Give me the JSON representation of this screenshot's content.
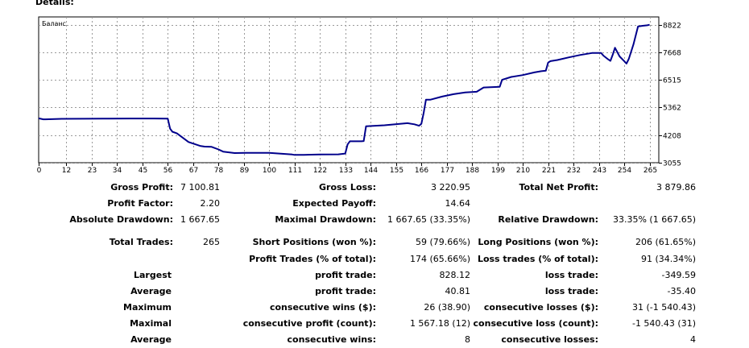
{
  "report": {
    "heading": "Details:",
    "chart_title": "Баланс"
  },
  "chart_data": {
    "type": "line",
    "title": "Баланс",
    "series": [
      {
        "name": "Баланс",
        "color": "#00008b",
        "x": [
          0,
          1,
          2,
          3,
          10,
          20,
          30,
          40,
          50,
          55,
          56,
          57,
          58,
          60,
          65,
          70,
          72,
          75,
          78,
          80,
          85,
          90,
          100,
          110,
          111,
          115,
          122,
          130,
          133,
          134,
          135,
          140,
          141,
          142,
          150,
          160,
          163,
          165,
          166,
          167,
          168,
          170,
          175,
          180,
          185,
          190,
          193,
          200,
          201,
          205,
          210,
          215,
          218,
          220,
          221,
          222,
          225,
          230,
          235,
          240,
          244,
          245,
          247,
          248,
          249,
          250,
          252,
          254,
          255,
          256,
          258,
          260,
          262,
          264,
          265
        ],
        "y": [
          4910,
          4890,
          4870,
          4870,
          4890,
          4895,
          4900,
          4905,
          4905,
          4900,
          4900,
          4480,
          4350,
          4280,
          3920,
          3760,
          3730,
          3720,
          3610,
          3520,
          3460,
          3465,
          3470,
          3400,
          3380,
          3385,
          3400,
          3405,
          3440,
          3820,
          3950,
          3950,
          3960,
          4580,
          4620,
          4710,
          4660,
          4600,
          4680,
          5130,
          5690,
          5690,
          5820,
          5920,
          5990,
          6020,
          6200,
          6230,
          6520,
          6640,
          6720,
          6830,
          6880,
          6900,
          7240,
          7300,
          7350,
          7460,
          7560,
          7640,
          7640,
          7530,
          7380,
          7310,
          7570,
          7860,
          7500,
          7300,
          7200,
          7400,
          8000,
          8750,
          8780,
          8800,
          8822
        ]
      }
    ],
    "xlim": [
      0,
      269
    ],
    "ylim": [
      3055,
      9150
    ],
    "x_ticks": [
      0,
      12,
      23,
      34,
      45,
      56,
      67,
      78,
      89,
      100,
      111,
      122,
      133,
      144,
      155,
      166,
      177,
      188,
      199,
      210,
      221,
      232,
      243,
      254,
      265
    ],
    "y_ticks": [
      {
        "value": 3055,
        "label": "3055"
      },
      {
        "value": 4208,
        "label": "4208"
      },
      {
        "value": 5362,
        "label": "5362"
      },
      {
        "value": 6515,
        "label": "6515"
      },
      {
        "value": 7668,
        "label": "7668"
      },
      {
        "value": 8822,
        "label": "8822"
      }
    ],
    "grid": true
  },
  "stats": {
    "gross_profit": {
      "label": "Gross Profit:",
      "value": "7 100.81"
    },
    "gross_loss": {
      "label": "Gross Loss:",
      "value": "3 220.95"
    },
    "total_net_profit": {
      "label": "Total Net Profit:",
      "value": "3 879.86"
    },
    "profit_factor": {
      "label": "Profit Factor:",
      "value": "2.20"
    },
    "expected_payoff": {
      "label": "Expected Payoff:",
      "value": "14.64"
    },
    "absolute_drawdown": {
      "label": "Absolute Drawdown:",
      "value": "1 667.65"
    },
    "maximal_drawdown": {
      "label": "Maximal Drawdown:",
      "value": "1 667.65 (33.35%)"
    },
    "relative_drawdown": {
      "label": "Relative Drawdown:",
      "value": "33.35% (1 667.65)"
    },
    "total_trades": {
      "label": "Total Trades:",
      "value": "265"
    },
    "short_positions": {
      "label": "Short Positions (won %):",
      "value": "59 (79.66%)"
    },
    "long_positions": {
      "label": "Long Positions (won %):",
      "value": "206 (61.65%)"
    },
    "profit_trades": {
      "label": "Profit Trades (% of total):",
      "value": "174 (65.66%)"
    },
    "loss_trades": {
      "label": "Loss trades (% of total):",
      "value": "91 (34.34%)"
    },
    "largest": {
      "label": "Largest",
      "profit_label": "profit trade:",
      "profit_value": "828.12",
      "loss_label": "loss trade:",
      "loss_value": "-349.59"
    },
    "average": {
      "label": "Average",
      "profit_label": "profit trade:",
      "profit_value": "40.81",
      "loss_label": "loss trade:",
      "loss_value": "-35.40"
    },
    "maximum": {
      "label": "Maximum",
      "profit_label": "consecutive wins ($):",
      "profit_value": "26 (38.90)",
      "loss_label": "consecutive losses ($):",
      "loss_value": "31 (-1 540.43)"
    },
    "maximal": {
      "label": "Maximal",
      "profit_label": "consecutive profit (count):",
      "profit_value": "1 567.18 (12)",
      "loss_label": "consecutive loss (count):",
      "loss_value": "-1 540.43 (31)"
    },
    "average_consec": {
      "label": "Average",
      "profit_label": "consecutive wins:",
      "profit_value": "8",
      "loss_label": "consecutive losses:",
      "loss_value": "4"
    }
  }
}
